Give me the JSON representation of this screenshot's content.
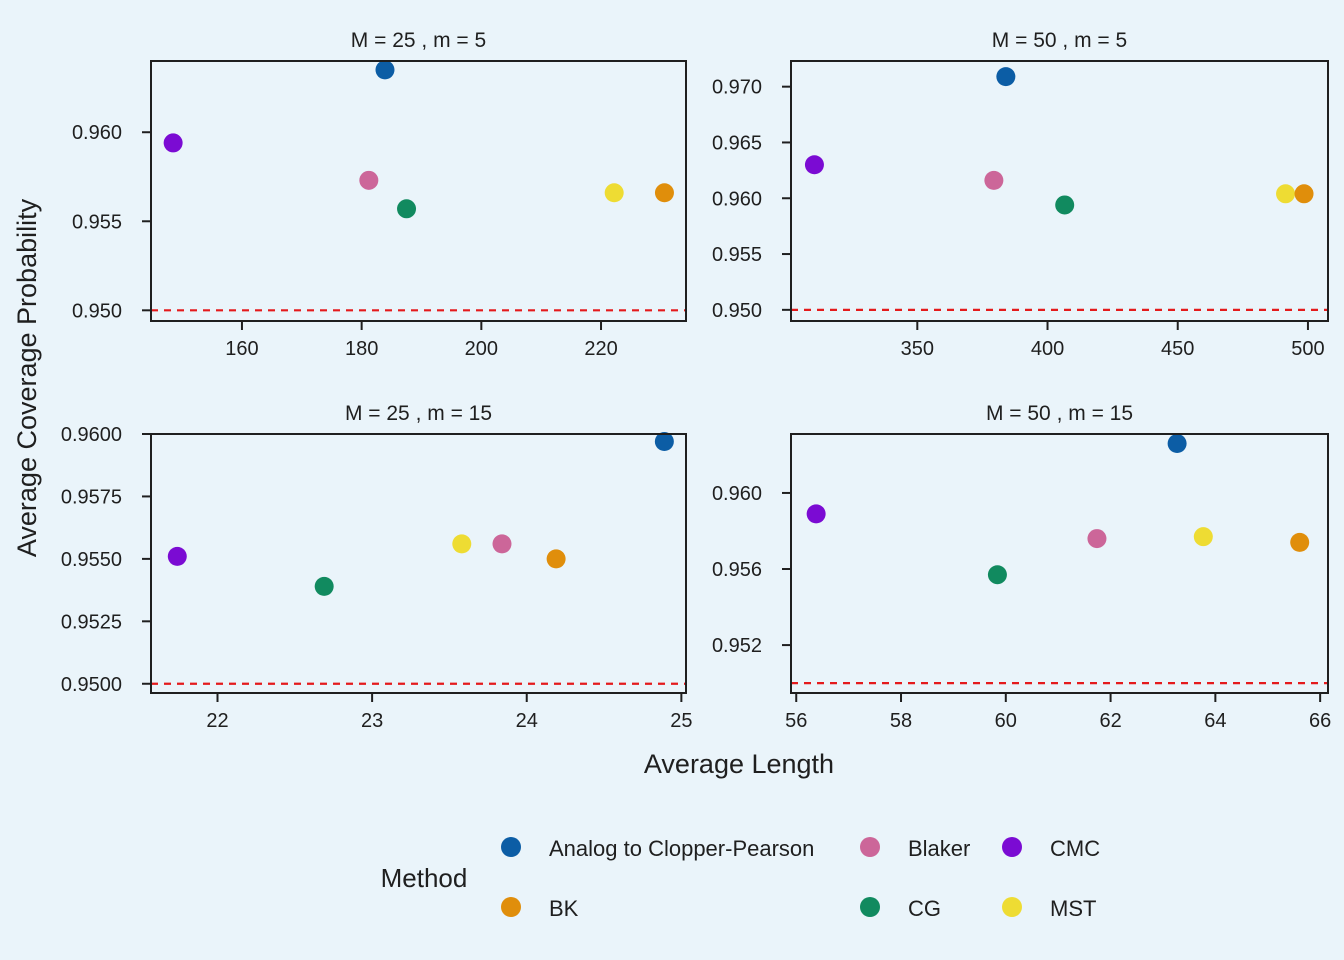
{
  "axis_labels": {
    "x": "Average Length",
    "y": "Average Coverage Probability"
  },
  "legend": {
    "title": "Method",
    "entries": [
      {
        "name": "Analog to Clopper-Pearson",
        "color": "#0c5da5"
      },
      {
        "name": "Blaker",
        "color": "#cc6699"
      },
      {
        "name": "CMC",
        "color": "#7b0bd3"
      },
      {
        "name": "BK",
        "color": "#e08e0b"
      },
      {
        "name": "CG",
        "color": "#118a5f"
      },
      {
        "name": "MST",
        "color": "#eedc33"
      }
    ]
  },
  "reference_line": {
    "y": 0.95,
    "color": "#e41a1c",
    "style": "dashed"
  },
  "chart_data": [
    {
      "type": "scatter",
      "title": "M = 25 , m = 5",
      "xlim": [
        144.8,
        234.2
      ],
      "ylim": [
        0.9494,
        0.964
      ],
      "xticks": [
        160,
        180,
        200,
        220
      ],
      "xtick_labels": [
        "160",
        "180",
        "200",
        "220"
      ],
      "yticks": [
        0.95,
        0.955,
        0.96
      ],
      "ytick_labels": [
        "0.950",
        "0.955",
        "0.960"
      ],
      "points": [
        {
          "series": "CMC",
          "x": 148.5,
          "y": 0.9594
        },
        {
          "series": "Analog to Clopper-Pearson",
          "x": 183.9,
          "y": 0.9635
        },
        {
          "series": "Blaker",
          "x": 181.2,
          "y": 0.9573
        },
        {
          "series": "CG",
          "x": 187.5,
          "y": 0.9557
        },
        {
          "series": "MST",
          "x": 222.2,
          "y": 0.9566
        },
        {
          "series": "BK",
          "x": 230.6,
          "y": 0.9566
        }
      ]
    },
    {
      "type": "scatter",
      "title": "M = 50 , m = 5",
      "xlim": [
        301.5,
        507.7
      ],
      "ylim": [
        0.949,
        0.9723
      ],
      "xticks": [
        350,
        400,
        450,
        500
      ],
      "xtick_labels": [
        "350",
        "400",
        "450",
        "500"
      ],
      "yticks": [
        0.95,
        0.955,
        0.96,
        0.965,
        0.97
      ],
      "ytick_labels": [
        "0.950",
        "0.955",
        "0.960",
        "0.965",
        "0.970"
      ],
      "points": [
        {
          "series": "CMC",
          "x": 310.5,
          "y": 0.963
        },
        {
          "series": "Analog to Clopper-Pearson",
          "x": 384.0,
          "y": 0.9709
        },
        {
          "series": "Blaker",
          "x": 379.4,
          "y": 0.9616
        },
        {
          "series": "CG",
          "x": 406.6,
          "y": 0.9594
        },
        {
          "series": "MST",
          "x": 491.4,
          "y": 0.9604
        },
        {
          "series": "BK",
          "x": 498.5,
          "y": 0.9604
        }
      ]
    },
    {
      "type": "scatter",
      "title": "M = 25 , m = 15",
      "xlim": [
        21.57,
        25.03
      ],
      "ylim": [
        0.94963,
        0.96
      ],
      "xticks": [
        22,
        23,
        24,
        25
      ],
      "xtick_labels": [
        "22",
        "23",
        "24",
        "25"
      ],
      "yticks": [
        0.95,
        0.9525,
        0.955,
        0.9575,
        0.96
      ],
      "ytick_labels": [
        "0.9500",
        "0.9525",
        "0.9550",
        "0.9575",
        "0.9600"
      ],
      "points": [
        {
          "series": "CMC",
          "x": 21.74,
          "y": 0.9551
        },
        {
          "series": "Analog to Clopper-Pearson",
          "x": 24.89,
          "y": 0.9597
        },
        {
          "series": "Blaker",
          "x": 23.84,
          "y": 0.9556
        },
        {
          "series": "CG",
          "x": 22.69,
          "y": 0.9539
        },
        {
          "series": "MST",
          "x": 23.58,
          "y": 0.9556
        },
        {
          "series": "BK",
          "x": 24.19,
          "y": 0.955
        }
      ]
    },
    {
      "type": "scatter",
      "title": "M = 50 , m = 15",
      "xlim": [
        55.9,
        66.15
      ],
      "ylim": [
        0.94948,
        0.9631
      ],
      "xticks": [
        56,
        58,
        60,
        62,
        64,
        66
      ],
      "xtick_labels": [
        "56",
        "58",
        "60",
        "62",
        "64",
        "66"
      ],
      "yticks": [
        0.952,
        0.956,
        0.96
      ],
      "ytick_labels": [
        "0.952",
        "0.956",
        "0.960"
      ],
      "points": [
        {
          "series": "CMC",
          "x": 56.38,
          "y": 0.9589
        },
        {
          "series": "Analog to Clopper-Pearson",
          "x": 63.27,
          "y": 0.9626
        },
        {
          "series": "Blaker",
          "x": 61.74,
          "y": 0.9576
        },
        {
          "series": "CG",
          "x": 59.84,
          "y": 0.9557
        },
        {
          "series": "MST",
          "x": 63.77,
          "y": 0.9577
        },
        {
          "series": "BK",
          "x": 65.61,
          "y": 0.9574
        }
      ]
    }
  ]
}
